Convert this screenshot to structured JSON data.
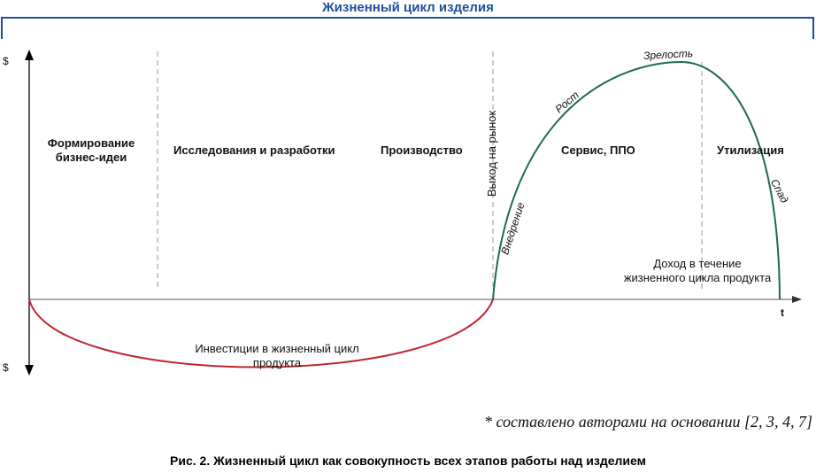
{
  "title": "Жизненный цикл изделия",
  "axis": {
    "y_top": "$",
    "y_bottom": "$",
    "x": "t"
  },
  "stages": {
    "idea_line1": "Формирование",
    "idea_line2": "бизнес-идеи",
    "research": "Исследования и разработки",
    "production": "Производство",
    "market_entry": "Выход на рынок",
    "service": "Сервис, ППО",
    "utilization": "Утилизация"
  },
  "curve_labels": {
    "introduction": "Внедрение",
    "growth": "Рост",
    "maturity": "Зрелость",
    "decline": "Спад"
  },
  "income": {
    "line1": "Доход в течение",
    "line2": "жизненного цикла продукта"
  },
  "investment": {
    "line1": "Инвестиции в жизненный цикл",
    "line2": "продукта"
  },
  "source_note": "* составлено авторами на основании [2, 3, 4, 7]",
  "caption": "Рис. 2. Жизненный цикл как совокупность всех этапов работы над изделием",
  "colors": {
    "title": "#1f4e9a",
    "bracket": "#1f4e9a",
    "income_curve": "#1e6b4e",
    "investment_curve": "#c0282e",
    "axis": "#000000",
    "divider": "#999999"
  }
}
